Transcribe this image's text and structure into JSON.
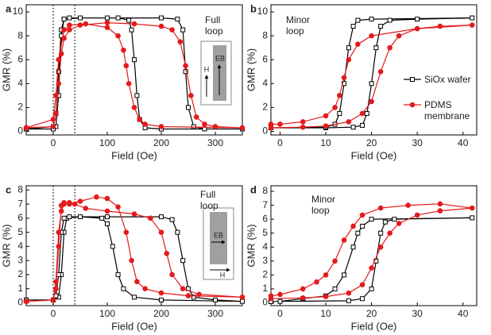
{
  "chart_data": [
    {
      "type": "line",
      "panel": "a",
      "annotation": "Full loop",
      "xlabel": "Field (Oe)",
      "ylabel": "GMR (%)",
      "xlim": [
        -50,
        350
      ],
      "ylim": [
        -0.3,
        10.6
      ],
      "xticks": [
        0,
        100,
        200,
        300
      ],
      "yticks": [
        0,
        2,
        4,
        6,
        8,
        10
      ],
      "vlines": [
        0,
        40
      ],
      "inset": {
        "orientation": "vertical",
        "h": "H",
        "eb": "EB"
      },
      "series": [
        {
          "color": "#000000",
          "marker": "square-open",
          "x": [
            -50,
            0,
            5,
            10,
            15,
            20,
            30,
            100,
            200,
            230,
            240,
            245,
            250,
            260,
            280,
            350,
            200,
            170,
            160,
            155,
            150,
            145,
            140,
            120,
            50,
            20,
            15,
            10,
            5,
            0,
            -50
          ],
          "values": [
            0.2,
            0.2,
            0.4,
            3,
            8,
            9.4,
            9.5,
            9.5,
            9.5,
            9.4,
            8.5,
            5,
            2,
            0.4,
            0.2,
            0.2,
            0.2,
            0.3,
            1,
            3,
            6,
            8.5,
            9.3,
            9.5,
            9.5,
            9.4,
            8.5,
            5,
            1.5,
            0.4,
            0.2
          ]
        },
        {
          "color": "#e41a1c",
          "marker": "circle",
          "x": [
            -50,
            0,
            5,
            10,
            15,
            20,
            30,
            50,
            100,
            150,
            200,
            220,
            235,
            245,
            255,
            265,
            280,
            300,
            350,
            200,
            170,
            160,
            150,
            140,
            135,
            130,
            120,
            100,
            60,
            30,
            20,
            10,
            5,
            0,
            -50
          ],
          "values": [
            0.3,
            0.4,
            1.5,
            4,
            6.5,
            7.8,
            8.5,
            8.9,
            9.1,
            9.0,
            8.8,
            8.5,
            7.5,
            5.5,
            3,
            1.2,
            0.6,
            0.4,
            0.3,
            0.4,
            0.6,
            1,
            2,
            4,
            5.5,
            6.8,
            8,
            8.7,
            9.0,
            8.9,
            8.5,
            6,
            3,
            1,
            0.3
          ]
        }
      ]
    },
    {
      "type": "line",
      "panel": "b",
      "annotation": "Minor loop",
      "xlabel": "Field (Oe)",
      "ylabel": "GMR (%)",
      "xlim": [
        -2,
        43
      ],
      "ylim": [
        -0.3,
        10.6
      ],
      "xticks": [
        0,
        10,
        20,
        30,
        40
      ],
      "yticks": [
        0,
        2,
        4,
        6,
        8,
        10
      ],
      "legend": "right",
      "series": [
        {
          "name": "SiOx wafer",
          "color": "#000000",
          "marker": "square-open",
          "x": [
            -2,
            10,
            16,
            18,
            19,
            20,
            21,
            22,
            24,
            30,
            42,
            20,
            17,
            16,
            15,
            14,
            13,
            12,
            10,
            -2
          ],
          "values": [
            0.3,
            0.3,
            0.35,
            0.5,
            1.5,
            4,
            7,
            8.8,
            9.3,
            9.4,
            9.5,
            9.4,
            9.3,
            8.8,
            7,
            4,
            1.5,
            0.6,
            0.35,
            0.3
          ]
        },
        {
          "name": "PDMS membrane",
          "color": "#e41a1c",
          "marker": "circle",
          "x": [
            -2,
            5,
            10,
            15,
            18,
            20,
            22,
            24,
            26,
            30,
            35,
            42,
            30,
            20,
            17,
            15,
            14,
            13,
            12,
            10,
            5,
            0,
            -2
          ],
          "values": [
            0.3,
            0.35,
            0.45,
            0.8,
            1.5,
            2.5,
            5,
            7,
            8,
            8.6,
            8.8,
            8.9,
            8.6,
            8,
            7.3,
            6,
            4.5,
            3,
            2,
            1.3,
            0.8,
            0.6,
            0.6
          ]
        }
      ]
    },
    {
      "type": "line",
      "panel": "c",
      "annotation": "Full loop",
      "xlabel": "Field (Oe)",
      "ylabel": "GMR (%)",
      "xlim": [
        -50,
        350
      ],
      "ylim": [
        -0.2,
        8.3
      ],
      "xticks": [
        0,
        100,
        200,
        300
      ],
      "yticks": [
        0,
        1,
        2,
        3,
        4,
        5,
        6,
        7,
        8
      ],
      "vlines": [
        0,
        40
      ],
      "inset": {
        "orientation": "horizontal",
        "h": "H",
        "eb": "EB"
      },
      "series": [
        {
          "color": "#000000",
          "marker": "square-open",
          "x": [
            -50,
            0,
            10,
            15,
            20,
            25,
            30,
            100,
            200,
            220,
            230,
            240,
            250,
            260,
            300,
            350,
            200,
            150,
            130,
            120,
            110,
            100,
            90,
            50,
            20,
            15,
            10,
            5,
            0,
            -50
          ],
          "values": [
            0.2,
            0.2,
            0.4,
            2,
            5,
            6,
            6.1,
            6.1,
            6.1,
            5.9,
            5,
            3,
            1,
            0.4,
            0.2,
            0.1,
            0.2,
            0.4,
            1,
            2,
            4,
            5.6,
            6,
            6.1,
            6,
            5,
            2,
            0.5,
            0.2,
            0.2
          ]
        },
        {
          "color": "#e41a1c",
          "marker": "circle",
          "x": [
            -50,
            0,
            5,
            10,
            15,
            20,
            30,
            40,
            60,
            100,
            150,
            180,
            200,
            210,
            220,
            240,
            270,
            350,
            250,
            200,
            170,
            155,
            145,
            135,
            120,
            100,
            80,
            50,
            30,
            20,
            15,
            10,
            5,
            0,
            -50
          ],
          "values": [
            0.1,
            0.2,
            1.5,
            5,
            6.5,
            7,
            7.1,
            7,
            6.7,
            6.5,
            6.3,
            6,
            5,
            3.5,
            2,
            1,
            0.6,
            0.4,
            0.5,
            0.7,
            1,
            1.5,
            3,
            5,
            6.8,
            7.4,
            7.5,
            7.2,
            7.0,
            7.1,
            6.9,
            4,
            1,
            0.2,
            0.1
          ]
        }
      ]
    },
    {
      "type": "line",
      "panel": "d",
      "annotation": "Minor loop",
      "xlabel": "Field (Oe)",
      "ylabel": "GMR (%)",
      "xlim": [
        -2,
        43
      ],
      "ylim": [
        -0.2,
        8.4
      ],
      "xticks": [
        0,
        10,
        20,
        30,
        40
      ],
      "yticks": [
        0,
        1,
        2,
        3,
        4,
        5,
        6,
        7,
        8
      ],
      "series": [
        {
          "color": "#000000",
          "marker": "square-open",
          "x": [
            -2,
            15,
            18,
            20,
            21,
            22,
            23,
            25,
            42,
            20,
            18,
            17,
            16,
            14,
            12,
            10,
            5,
            0,
            -2
          ],
          "values": [
            0.1,
            0.15,
            0.3,
            1,
            3,
            5,
            5.8,
            6,
            6.1,
            6,
            5.5,
            5,
            4,
            2,
            1,
            0.5,
            0.3,
            0.1,
            0.1
          ]
        },
        {
          "color": "#e41a1c",
          "marker": "circle",
          "x": [
            -2,
            5,
            10,
            15,
            18,
            20,
            22,
            24,
            26,
            30,
            35,
            42,
            35,
            28,
            22,
            18,
            16,
            14,
            12,
            10,
            8,
            5,
            0,
            -2
          ],
          "values": [
            0.3,
            0.35,
            0.45,
            0.7,
            1.3,
            2.5,
            4,
            5,
            5.7,
            6.3,
            6.6,
            6.8,
            7.1,
            7,
            6.8,
            6.3,
            5.5,
            4.5,
            3,
            2,
            1.5,
            1,
            0.6,
            0.5
          ]
        }
      ]
    }
  ]
}
